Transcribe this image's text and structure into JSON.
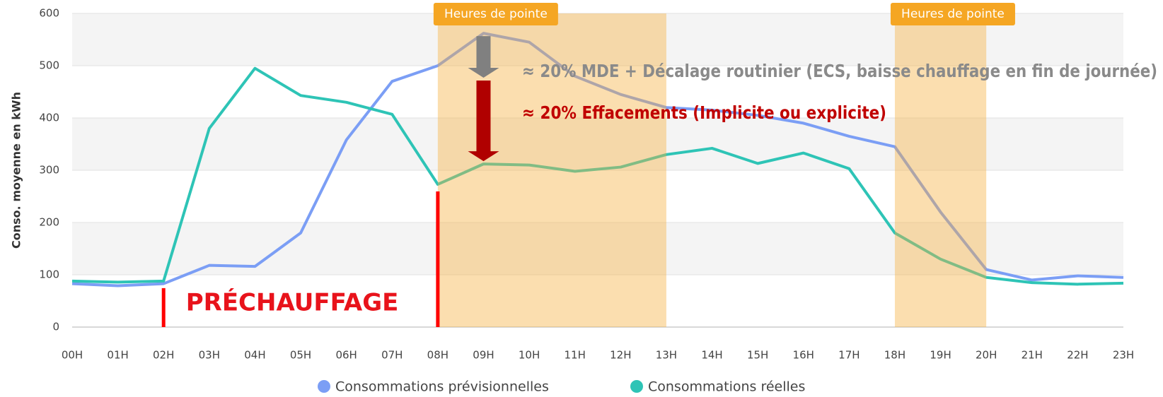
{
  "chart_data": {
    "type": "line",
    "y_label": "Conso. moyenne en kWh",
    "categories": [
      "00H",
      "01H",
      "02H",
      "03H",
      "04H",
      "05H",
      "06H",
      "07H",
      "08H",
      "09H",
      "10H",
      "11H",
      "12H",
      "13H",
      "14H",
      "15H",
      "16H",
      "17H",
      "18H",
      "19H",
      "20H",
      "21H",
      "22H",
      "23H"
    ],
    "series": [
      {
        "name": "Consommations prévisionnelles",
        "color": "#7b9ef5",
        "values": [
          83,
          79,
          83,
          118,
          116,
          180,
          358,
          470,
          500,
          562,
          545,
          480,
          445,
          420,
          415,
          405,
          390,
          365,
          345,
          220,
          110,
          90,
          98,
          95
        ]
      },
      {
        "name": "Consommations réelles",
        "color": "#2ec4b6",
        "values": [
          88,
          86,
          88,
          380,
          495,
          443,
          430,
          407,
          273,
          312,
          310,
          298,
          306,
          330,
          342,
          313,
          333,
          303,
          180,
          130,
          95,
          85,
          82,
          84
        ]
      }
    ],
    "ylim": [
      0,
      600
    ],
    "yticks": [
      0,
      100,
      200,
      300,
      400,
      500,
      600
    ],
    "grid": true,
    "legend": "bottom",
    "peak_periods": [
      {
        "label": "Heures de pointe",
        "start": "08H",
        "end": "13H"
      },
      {
        "label": "Heures de pointe",
        "start": "18H",
        "end": "20H"
      }
    ],
    "preheat": {
      "label": "PRÉCHAUFFAGE",
      "start": "02H",
      "end": "08H"
    },
    "annotations": [
      "≈ 20% MDE +  Décalage routinier (ECS, baisse chauffage en fin de journée)",
      "≈ 20%  Effacements (Implicite ou explicite)"
    ]
  }
}
